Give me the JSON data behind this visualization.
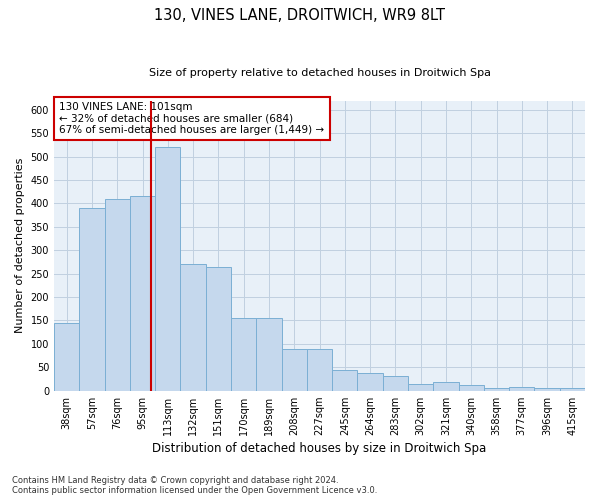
{
  "title": "130, VINES LANE, DROITWICH, WR9 8LT",
  "subtitle": "Size of property relative to detached houses in Droitwich Spa",
  "xlabel": "Distribution of detached houses by size in Droitwich Spa",
  "ylabel": "Number of detached properties",
  "footnote1": "Contains HM Land Registry data © Crown copyright and database right 2024.",
  "footnote2": "Contains public sector information licensed under the Open Government Licence v3.0.",
  "annotation_line1": "130 VINES LANE: 101sqm",
  "annotation_line2": "← 32% of detached houses are smaller (684)",
  "annotation_line3": "67% of semi-detached houses are larger (1,449) →",
  "bar_color": "#c5d8ed",
  "bar_edge_color": "#7bafd4",
  "bg_color": "#e8f0f8",
  "grid_color": "#c0d0e0",
  "redline_color": "#cc0000",
  "annotation_box_edgecolor": "#cc0000",
  "categories": [
    "38sqm",
    "57sqm",
    "76sqm",
    "95sqm",
    "113sqm",
    "132sqm",
    "151sqm",
    "170sqm",
    "189sqm",
    "208sqm",
    "227sqm",
    "245sqm",
    "264sqm",
    "283sqm",
    "302sqm",
    "321sqm",
    "340sqm",
    "358sqm",
    "377sqm",
    "396sqm",
    "415sqm"
  ],
  "values": [
    145,
    390,
    410,
    415,
    520,
    270,
    265,
    155,
    155,
    90,
    90,
    45,
    38,
    32,
    15,
    18,
    13,
    5,
    7,
    6,
    5
  ],
  "ylim": [
    0,
    620
  ],
  "yticks": [
    0,
    50,
    100,
    150,
    200,
    250,
    300,
    350,
    400,
    450,
    500,
    550,
    600
  ],
  "title_fontsize": 10.5,
  "subtitle_fontsize": 8,
  "ylabel_fontsize": 8,
  "xlabel_fontsize": 8.5,
  "tick_fontsize": 7,
  "footnote_fontsize": 6,
  "annotation_fontsize": 7.5
}
